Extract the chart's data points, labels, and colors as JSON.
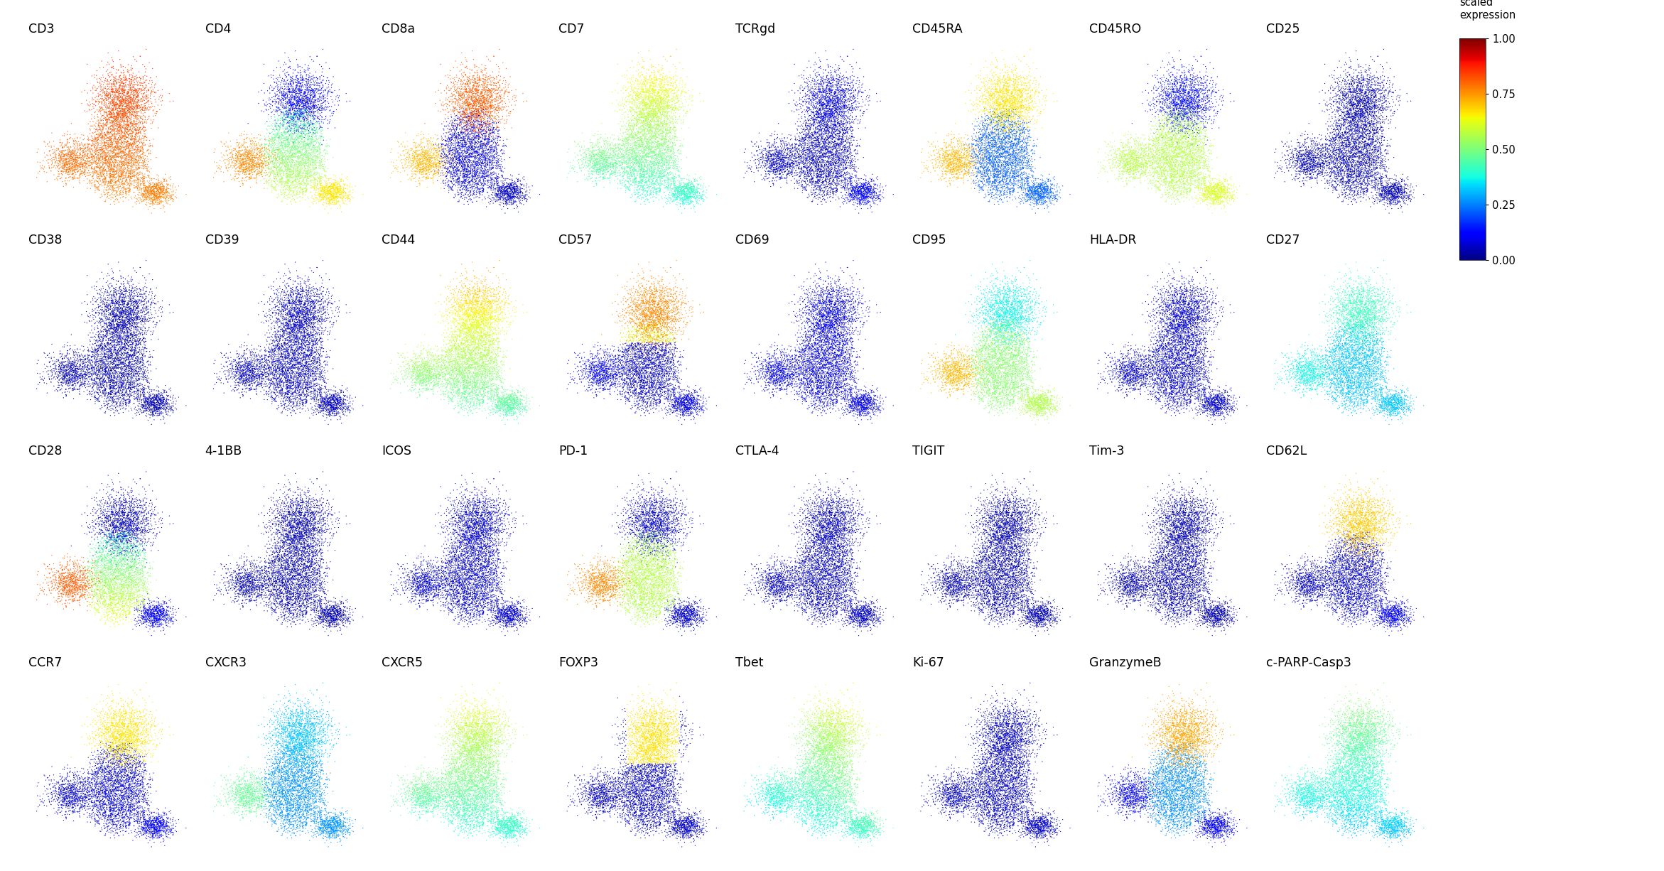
{
  "markers": [
    [
      "CD3",
      "CD4",
      "CD8a",
      "CD7",
      "TCRgd",
      "CD45RA",
      "CD45RO",
      "CD25"
    ],
    [
      "CD38",
      "CD39",
      "CD44",
      "CD57",
      "CD69",
      "CD95",
      "HLA-DR",
      "CD27"
    ],
    [
      "CD28",
      "4-1BB",
      "ICOS",
      "PD-1",
      "CTLA-4",
      "TIGIT",
      "Tim-3",
      "CD62L"
    ],
    [
      "CCR7",
      "CXCR3",
      "CXCR5",
      "FOXP3",
      "Tbet",
      "Ki-67",
      "GranzymeB",
      "c-PARP-Casp3"
    ]
  ],
  "colorbar_label_line1": "scaled",
  "colorbar_label_line2": "expression",
  "colorbar_ticks": [
    0.0,
    0.25,
    0.5,
    0.75,
    1.0
  ],
  "background_color": "#ffffff",
  "n_points": 6000,
  "seed": 42
}
